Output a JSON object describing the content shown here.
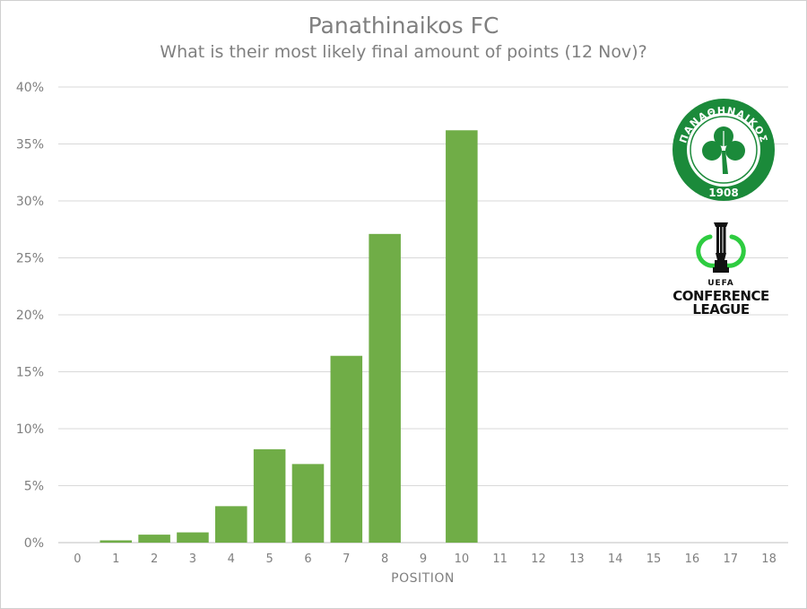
{
  "chart_data": {
    "type": "bar",
    "title": "Panathinaikos FC",
    "subtitle": "What is their most likely final amount of points (12 Nov)?",
    "xlabel": "POSITION",
    "ylabel": "",
    "categories": [
      "0",
      "1",
      "2",
      "3",
      "4",
      "5",
      "6",
      "7",
      "8",
      "9",
      "10",
      "11",
      "12",
      "13",
      "14",
      "15",
      "16",
      "17",
      "18"
    ],
    "values": [
      0,
      0.2,
      0.7,
      0.9,
      3.2,
      8.2,
      6.9,
      16.4,
      27.1,
      0,
      36.2,
      0,
      0,
      0,
      0,
      0,
      0,
      0,
      0
    ],
    "ylim": [
      0,
      40
    ],
    "yticks": [
      0,
      5,
      10,
      15,
      20,
      25,
      30,
      35,
      40
    ],
    "ytick_suffix": "%",
    "grid": true,
    "bar_color": "#70ad47"
  },
  "logos": {
    "club_crest": {
      "icon": "panathinaikos-crest-icon",
      "text": "ΠΑΝΑΘΗΝΑΙΚΟΣ",
      "year": "1908",
      "color": "#1b8a3a"
    },
    "competition": {
      "icon": "conference-league-trophy-icon",
      "uefa": "UEFA",
      "line1": "CONFERENCE",
      "line2": "LEAGUE"
    }
  }
}
